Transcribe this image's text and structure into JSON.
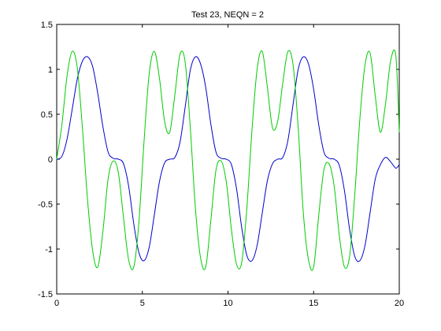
{
  "chart_data": {
    "type": "line",
    "title": "Test 23, NEQN = 2",
    "xlabel": "",
    "ylabel": "",
    "xlim": [
      0,
      20
    ],
    "ylim": [
      -1.5,
      1.5
    ],
    "grid": false,
    "legend": "none",
    "x_ticks": [
      0,
      5,
      10,
      15,
      20
    ],
    "x_tick_labels": [
      "0",
      "5",
      "10",
      "15",
      "20"
    ],
    "y_ticks": [
      1.5,
      1,
      0.5,
      0,
      -0.5,
      -1,
      -1.5
    ],
    "y_tick_labels": [
      "1.5",
      "1",
      "0.5",
      "0",
      "-0.5",
      "-1",
      "-1.5"
    ],
    "series": [
      {
        "color": "#0000cc",
        "x": [
          0,
          0.3,
          0.6,
          0.9,
          1.2,
          1.5,
          1.8,
          2.1,
          2.4,
          2.7,
          3.0,
          3.3,
          3.6,
          3.9,
          4.2,
          4.5,
          4.8,
          5.1,
          5.4,
          5.7,
          6.0,
          6.3,
          6.6,
          6.9,
          7.2,
          7.5,
          7.8,
          8.1,
          8.4,
          8.7,
          9.0,
          9.3,
          9.6,
          9.9,
          10.2,
          10.5,
          10.8,
          11.1,
          11.4,
          11.7,
          12.0,
          12.3,
          12.6,
          12.9,
          13.2,
          13.5,
          13.8,
          14.1,
          14.4,
          14.7,
          15.0,
          15.3,
          15.6,
          15.9,
          16.2,
          16.5,
          16.8,
          17.1,
          17.4,
          17.7,
          18.0,
          18.3,
          18.6,
          18.9,
          19.2,
          19.5,
          19.8,
          20.0
        ],
        "y": [
          0.0,
          0.03,
          0.22,
          0.55,
          0.89,
          1.09,
          1.14,
          1.03,
          0.73,
          0.36,
          0.08,
          0.01,
          0.0,
          -0.05,
          -0.3,
          -0.72,
          -1.04,
          -1.13,
          -0.98,
          -0.62,
          -0.25,
          -0.04,
          0.0,
          0.02,
          0.19,
          0.58,
          0.99,
          1.14,
          1.06,
          0.8,
          0.39,
          0.08,
          0.01,
          0.0,
          -0.06,
          -0.33,
          -0.76,
          -1.07,
          -1.13,
          -0.96,
          -0.6,
          -0.24,
          -0.05,
          0.0,
          0.02,
          0.21,
          0.61,
          1.0,
          1.14,
          1.06,
          0.78,
          0.38,
          0.08,
          0.01,
          0.0,
          -0.07,
          -0.35,
          -0.78,
          -1.08,
          -1.13,
          -0.96,
          -0.59,
          -0.22,
          -0.06,
          0.02,
          -0.03,
          -0.1,
          -0.06
        ]
      },
      {
        "color": "#00cc00",
        "x": [
          0,
          0.3,
          0.6,
          0.9,
          1.2,
          1.5,
          1.8,
          2.1,
          2.4,
          2.7,
          3.0,
          3.3,
          3.6,
          3.9,
          4.2,
          4.5,
          4.8,
          5.1,
          5.4,
          5.7,
          6.0,
          6.3,
          6.6,
          6.9,
          7.2,
          7.5,
          7.8,
          8.1,
          8.4,
          8.7,
          9.0,
          9.3,
          9.6,
          9.9,
          10.2,
          10.5,
          10.8,
          11.1,
          11.4,
          11.7,
          12.0,
          12.3,
          12.6,
          12.9,
          13.2,
          13.5,
          13.8,
          14.1,
          14.4,
          14.7,
          15.0,
          15.3,
          15.6,
          15.9,
          16.2,
          16.5,
          16.8,
          17.1,
          17.4,
          17.7,
          18.0,
          18.3,
          18.6,
          18.9,
          19.2,
          19.5,
          19.8,
          20.0
        ],
        "y": [
          0.0,
          0.38,
          0.92,
          1.2,
          1.02,
          0.35,
          -0.45,
          -1.02,
          -1.2,
          -0.8,
          -0.22,
          -0.02,
          -0.15,
          -0.65,
          -1.12,
          -1.2,
          -0.7,
          0.2,
          0.95,
          1.2,
          0.9,
          0.42,
          0.3,
          0.72,
          1.17,
          1.08,
          0.35,
          -0.55,
          -1.1,
          -1.2,
          -0.68,
          -0.12,
          -0.02,
          -0.25,
          -0.78,
          -1.17,
          -1.15,
          -0.55,
          0.32,
          1.0,
          1.2,
          0.8,
          0.35,
          0.42,
          0.85,
          1.2,
          1.05,
          0.35,
          -0.6,
          -1.12,
          -1.2,
          -0.62,
          -0.12,
          -0.05,
          -0.3,
          -0.85,
          -1.2,
          -1.08,
          -0.4,
          0.45,
          1.05,
          1.18,
          0.7,
          0.3,
          0.62,
          1.1,
          1.15,
          0.3
        ]
      }
    ]
  }
}
